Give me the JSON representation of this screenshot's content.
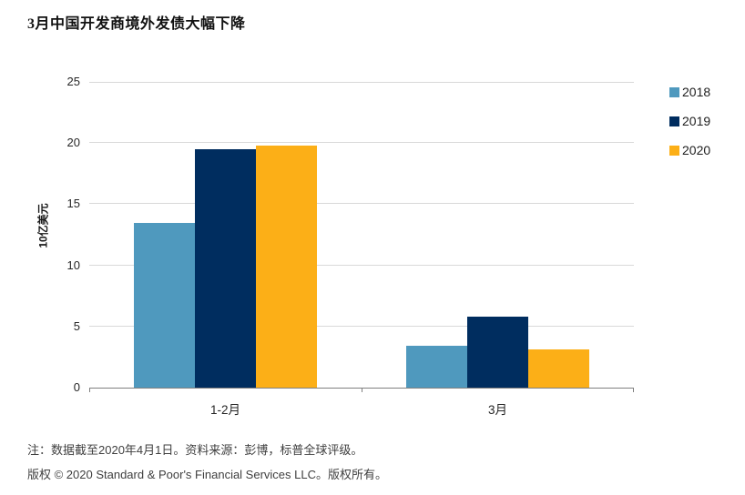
{
  "title": "3月中国开发商境外发债大幅下降",
  "chart_data": {
    "type": "bar",
    "grouped": true,
    "categories": [
      "1-2月",
      "3月"
    ],
    "series": [
      {
        "name": "2018",
        "color": "#4F99BE",
        "values": [
          13.5,
          3.4
        ]
      },
      {
        "name": "2019",
        "color": "#002D5F",
        "values": [
          19.5,
          5.8
        ]
      },
      {
        "name": "2020",
        "color": "#FCAF17",
        "values": [
          19.8,
          3.1
        ]
      }
    ],
    "ylabel": "10亿美元",
    "xlabel": "",
    "ylim": [
      0,
      25
    ],
    "ytick_step": 5,
    "grid": "horizontal",
    "legend_position": "right"
  },
  "colors": {
    "gridline": "#d9d9d9",
    "axis_line": "#7f7f7f",
    "tick_label": "#262626",
    "background": "#ffffff"
  },
  "footnotes": {
    "note": "注：数据截至2020年4月1日。资料来源：彭博，标普全球评级。",
    "copyright": "版权 © 2020 Standard & Poor's Financial Services LLC。版权所有。"
  }
}
